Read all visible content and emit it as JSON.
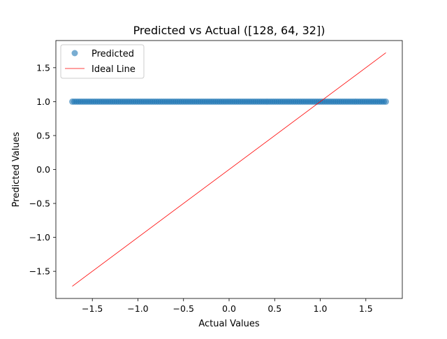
{
  "chart_data": {
    "type": "scatter",
    "title": "Predicted vs Actual ([128, 64, 32])",
    "xlabel": "Actual Values",
    "ylabel": "Predicted Values",
    "xlim": [
      -1.9,
      1.9
    ],
    "ylim": [
      -1.9,
      1.9
    ],
    "xticks": [
      -1.5,
      -1.0,
      -0.5,
      0.0,
      0.5,
      1.0,
      1.5
    ],
    "xtick_labels": [
      "−1.5",
      "−1.0",
      "−0.5",
      "0.0",
      "0.5",
      "1.0",
      "1.5"
    ],
    "yticks": [
      -1.5,
      -1.0,
      -0.5,
      0.0,
      0.5,
      1.0,
      1.5
    ],
    "ytick_labels": [
      "−1.5",
      "−1.0",
      "−0.5",
      "0.0",
      "0.5",
      "1.0",
      "1.5"
    ],
    "grid": false,
    "legend_position": "top-left",
    "series": [
      {
        "name": "Predicted",
        "kind": "scatter",
        "color": "#1f77b4",
        "alpha": 0.6,
        "x_range": [
          -1.72,
          1.72
        ],
        "y_constant": 1.0,
        "point_count": 150
      },
      {
        "name": "Ideal Line",
        "kind": "line",
        "color": "#ff0000",
        "x": [
          -1.72,
          1.72
        ],
        "y": [
          -1.72,
          1.72
        ]
      }
    ]
  }
}
